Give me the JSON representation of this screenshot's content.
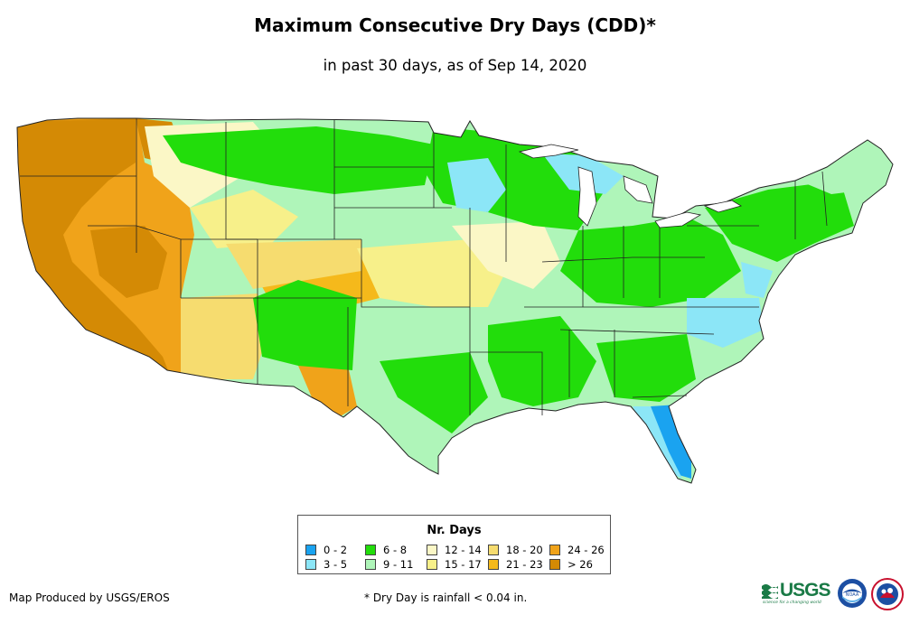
{
  "title": "Maximum Consecutive Dry Days (CDD)*",
  "subtitle": "in past 30 days, as of Sep 14, 2020",
  "legend": {
    "title": "Nr. Days",
    "classes": [
      {
        "label": "0 - 2",
        "color": "#1aa3f0"
      },
      {
        "label": "3 - 5",
        "color": "#8ce6f7"
      },
      {
        "label": "6 - 8",
        "color": "#22dd0b"
      },
      {
        "label": "9 - 11",
        "color": "#aff5b9"
      },
      {
        "label": "12 - 14",
        "color": "#fbf7c6"
      },
      {
        "label": "15 - 17",
        "color": "#f7f08a"
      },
      {
        "label": "18 - 20",
        "color": "#f6dc6f"
      },
      {
        "label": "21 - 23",
        "color": "#f5b91b"
      },
      {
        "label": "24 - 26",
        "color": "#f0a31a"
      },
      {
        "label": "> 26",
        "color": "#d48a05"
      }
    ]
  },
  "footer": {
    "credit": "Map Produced by USGS/EROS",
    "footnote": "* Dry Day is rainfall < 0.04 in."
  },
  "logos": {
    "usgs_name": "USGS",
    "usgs_tagline": "science for a changing world",
    "noaa_name": "NOAA"
  }
}
